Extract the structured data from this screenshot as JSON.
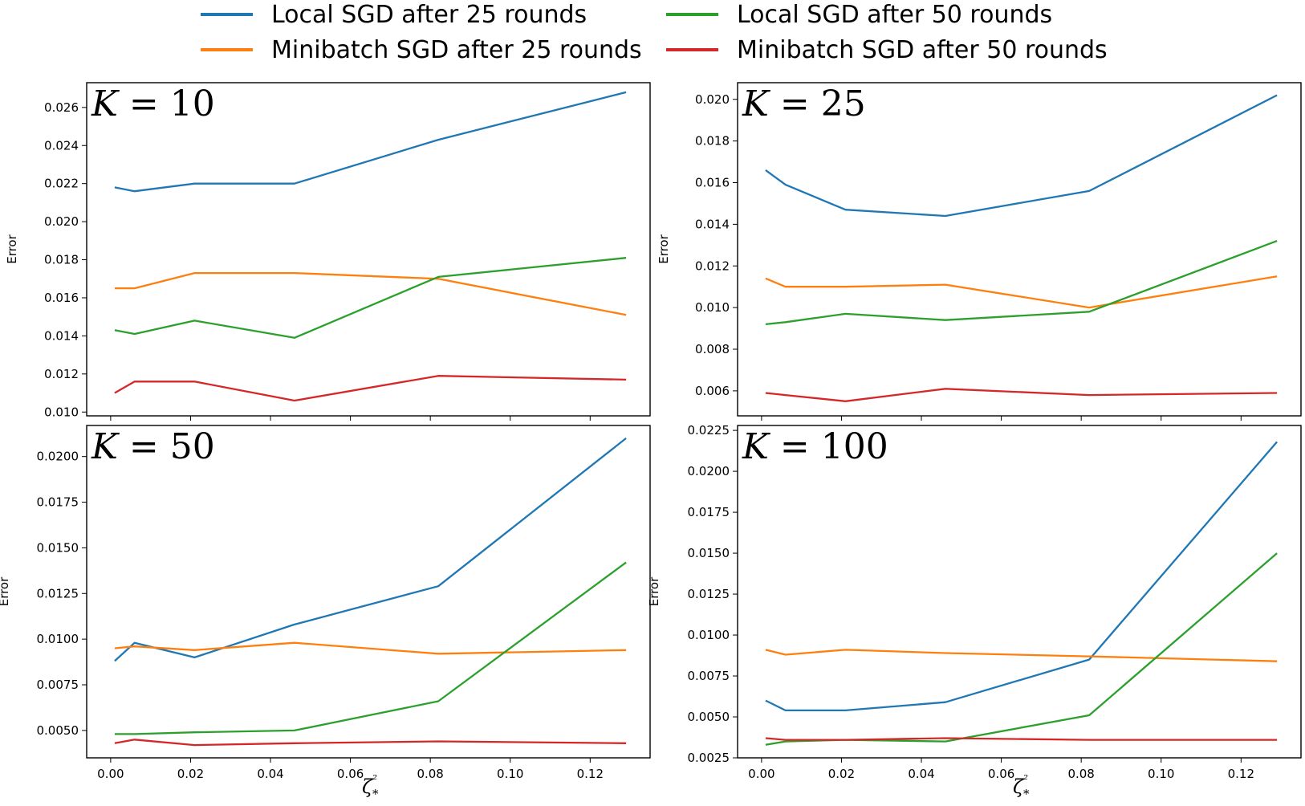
{
  "colors": {
    "local_25": "#1f77b4",
    "minibatch_25": "#ff7f0e",
    "local_50": "#2ca02c",
    "minibatch_50": "#d62728"
  },
  "legend": [
    {
      "name": "Local SGD after 25 rounds",
      "color_key": "local_25"
    },
    {
      "name": "Local SGD after 50 rounds",
      "color_key": "local_50"
    },
    {
      "name": "Minibatch SGD after 25 rounds",
      "color_key": "minibatch_25"
    },
    {
      "name": "Minibatch SGD after 50 rounds",
      "color_key": "minibatch_50"
    }
  ],
  "chart_data": [
    {
      "type": "line",
      "panel_label": "K = 10",
      "k_value": "10",
      "ylabel": "Error",
      "xlabel": "",
      "x": [
        0.001,
        0.006,
        0.021,
        0.046,
        0.082,
        0.129
      ],
      "xlim": [
        -0.006,
        0.135
      ],
      "ylim": [
        0.0098,
        0.0273
      ],
      "x_ticks": [
        "0.00",
        "0.02",
        "0.04",
        "0.06",
        "0.08",
        "0.10",
        "0.12"
      ],
      "y_ticks": [
        "0.010",
        "0.012",
        "0.014",
        "0.016",
        "0.018",
        "0.020",
        "0.022",
        "0.024",
        "0.026"
      ],
      "show_x_tick_labels": false,
      "series": [
        {
          "name": "Local SGD after 25 rounds",
          "color_key": "local_25",
          "values": [
            0.0218,
            0.0216,
            0.022,
            0.022,
            0.0243,
            0.0268
          ]
        },
        {
          "name": "Minibatch SGD after 25 rounds",
          "color_key": "minibatch_25",
          "values": [
            0.0165,
            0.0165,
            0.0173,
            0.0173,
            0.017,
            0.0151
          ]
        },
        {
          "name": "Local SGD after 50 rounds",
          "color_key": "local_50",
          "values": [
            0.0143,
            0.0141,
            0.0148,
            0.0139,
            0.0171,
            0.0181
          ]
        },
        {
          "name": "Minibatch SGD after 50 rounds",
          "color_key": "minibatch_50",
          "values": [
            0.011,
            0.0116,
            0.0116,
            0.0106,
            0.0119,
            0.0117
          ]
        }
      ]
    },
    {
      "type": "line",
      "panel_label": "K = 25",
      "k_value": "25",
      "ylabel": "Error",
      "xlabel": "",
      "x": [
        0.001,
        0.006,
        0.021,
        0.046,
        0.082,
        0.129
      ],
      "xlim": [
        -0.006,
        0.135
      ],
      "ylim": [
        0.0048,
        0.0208
      ],
      "x_ticks": [
        "0.00",
        "0.02",
        "0.04",
        "0.06",
        "0.08",
        "0.10",
        "0.12"
      ],
      "y_ticks": [
        "0.006",
        "0.008",
        "0.010",
        "0.012",
        "0.014",
        "0.016",
        "0.018",
        "0.020"
      ],
      "show_x_tick_labels": false,
      "series": [
        {
          "name": "Local SGD after 25 rounds",
          "color_key": "local_25",
          "values": [
            0.0166,
            0.0159,
            0.0147,
            0.0144,
            0.0156,
            0.0202
          ]
        },
        {
          "name": "Minibatch SGD after 25 rounds",
          "color_key": "minibatch_25",
          "values": [
            0.0114,
            0.011,
            0.011,
            0.0111,
            0.01,
            0.0115
          ]
        },
        {
          "name": "Local SGD after 50 rounds",
          "color_key": "local_50",
          "values": [
            0.0092,
            0.0093,
            0.0097,
            0.0094,
            0.0098,
            0.0132
          ]
        },
        {
          "name": "Minibatch SGD after 50 rounds",
          "color_key": "minibatch_50",
          "values": [
            0.0059,
            0.0058,
            0.0055,
            0.0061,
            0.0058,
            0.0059
          ]
        }
      ]
    },
    {
      "type": "line",
      "panel_label": "K = 50",
      "k_value": "50",
      "ylabel": "Error",
      "xlabel": "ζ*²",
      "x": [
        0.001,
        0.006,
        0.021,
        0.046,
        0.082,
        0.129
      ],
      "xlim": [
        -0.006,
        0.135
      ],
      "ylim": [
        0.0035,
        0.0217
      ],
      "x_ticks": [
        "0.00",
        "0.02",
        "0.04",
        "0.06",
        "0.08",
        "0.10",
        "0.12"
      ],
      "y_ticks": [
        "0.0050",
        "0.0075",
        "0.0100",
        "0.0125",
        "0.0150",
        "0.0175",
        "0.0200"
      ],
      "show_x_tick_labels": true,
      "series": [
        {
          "name": "Local SGD after 25 rounds",
          "color_key": "local_25",
          "values": [
            0.0088,
            0.0098,
            0.009,
            0.0108,
            0.0129,
            0.021
          ]
        },
        {
          "name": "Minibatch SGD after 25 rounds",
          "color_key": "minibatch_25",
          "values": [
            0.0095,
            0.0096,
            0.0094,
            0.0098,
            0.0092,
            0.0094
          ]
        },
        {
          "name": "Local SGD after 50 rounds",
          "color_key": "local_50",
          "values": [
            0.0048,
            0.0048,
            0.0049,
            0.005,
            0.0066,
            0.0142
          ]
        },
        {
          "name": "Minibatch SGD after 50 rounds",
          "color_key": "minibatch_50",
          "values": [
            0.0043,
            0.0045,
            0.0042,
            0.0043,
            0.0044,
            0.0043
          ]
        }
      ]
    },
    {
      "type": "line",
      "panel_label": "K = 100",
      "k_value": "100",
      "ylabel": "Error",
      "xlabel": "ζ*²",
      "x": [
        0.001,
        0.006,
        0.021,
        0.046,
        0.082,
        0.129
      ],
      "xlim": [
        -0.006,
        0.135
      ],
      "ylim": [
        0.0025,
        0.0228
      ],
      "x_ticks": [
        "0.00",
        "0.02",
        "0.04",
        "0.06",
        "0.08",
        "0.10",
        "0.12"
      ],
      "y_ticks": [
        "0.0025",
        "0.0050",
        "0.0075",
        "0.0100",
        "0.0125",
        "0.0150",
        "0.0175",
        "0.0200",
        "0.0225"
      ],
      "show_x_tick_labels": true,
      "series": [
        {
          "name": "Local SGD after 25 rounds",
          "color_key": "local_25",
          "values": [
            0.006,
            0.0054,
            0.0054,
            0.0059,
            0.0085,
            0.0218
          ]
        },
        {
          "name": "Minibatch SGD after 25 rounds",
          "color_key": "minibatch_25",
          "values": [
            0.0091,
            0.0088,
            0.0091,
            0.0089,
            0.0087,
            0.0084
          ]
        },
        {
          "name": "Local SGD after 50 rounds",
          "color_key": "local_50",
          "values": [
            0.0033,
            0.0035,
            0.0036,
            0.0035,
            0.0051,
            0.015
          ]
        },
        {
          "name": "Minibatch SGD after 50 rounds",
          "color_key": "minibatch_50",
          "values": [
            0.0037,
            0.0036,
            0.0036,
            0.0037,
            0.0036,
            0.0036
          ]
        }
      ]
    }
  ]
}
